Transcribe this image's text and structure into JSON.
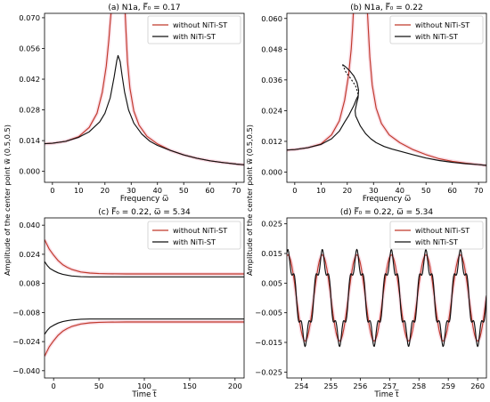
{
  "ylabel": "Amplitude of the center point w̅ (0.5,0.5)",
  "colors": {
    "without": "#c0392b",
    "with": "#111111",
    "glow": "#f6c6d6"
  },
  "chart_data": [
    {
      "type": "line",
      "title": "(a) N1a, F̅₀ = 0.17",
      "xlabel": "Frequency ω̅",
      "xlim": [
        -3,
        73
      ],
      "ylim": [
        -0.005,
        0.072
      ],
      "xticks": [
        0,
        10,
        20,
        30,
        40,
        50,
        60,
        70
      ],
      "yticks": [
        0.0,
        0.014,
        0.028,
        0.042,
        0.056,
        0.07
      ],
      "yticklabels": [
        "0.000",
        "0.014",
        "0.028",
        "0.042",
        "0.056",
        "0.070"
      ],
      "grid": false,
      "legend_position": "top-right",
      "series": [
        {
          "name": "without NiTi-ST",
          "kind": "without",
          "x": [
            -3,
            0,
            5,
            10,
            14,
            17,
            19,
            20.5,
            21.5,
            22,
            22.3
          ],
          "y": [
            0.0126,
            0.0128,
            0.0137,
            0.0158,
            0.02,
            0.0265,
            0.036,
            0.048,
            0.06,
            0.068,
            0.072
          ]
        },
        {
          "name": "without NiTi-ST",
          "kind": "without",
          "x": [
            27.7,
            28,
            28.6,
            29.5,
            31,
            33,
            36,
            40,
            45,
            50,
            55,
            60,
            65,
            70,
            73
          ],
          "y": [
            0.072,
            0.064,
            0.05,
            0.038,
            0.0275,
            0.021,
            0.016,
            0.0125,
            0.0095,
            0.0075,
            0.006,
            0.0048,
            0.004,
            0.0033,
            0.003
          ]
        },
        {
          "name": "with NiTi-ST",
          "kind": "with",
          "x": [
            -3,
            0,
            5,
            10,
            14,
            18,
            20,
            22,
            23.5,
            24.5,
            25,
            25.8,
            26.5,
            27.5,
            29,
            31,
            34,
            37,
            40,
            45,
            50,
            55,
            60,
            65,
            70,
            73
          ],
          "y": [
            0.0126,
            0.0128,
            0.0137,
            0.0155,
            0.018,
            0.0225,
            0.0265,
            0.0335,
            0.043,
            0.0505,
            0.0528,
            0.05,
            0.044,
            0.036,
            0.028,
            0.022,
            0.017,
            0.0138,
            0.0118,
            0.0095,
            0.0075,
            0.006,
            0.0048,
            0.004,
            0.0033,
            0.003
          ]
        }
      ]
    },
    {
      "type": "line",
      "title": "(b) N1a, F̅₀ = 0.22",
      "xlabel": "Frequency ω̅",
      "xlim": [
        -3,
        73
      ],
      "ylim": [
        -0.004,
        0.062
      ],
      "xticks": [
        0,
        10,
        20,
        30,
        40,
        50,
        60,
        70
      ],
      "yticks": [
        0.0,
        0.012,
        0.024,
        0.036,
        0.048,
        0.06
      ],
      "yticklabels": [
        "0.000",
        "0.012",
        "0.024",
        "0.036",
        "0.048",
        "0.060"
      ],
      "grid": false,
      "legend_position": "top-right",
      "series": [
        {
          "name": "without NiTi-ST",
          "kind": "without",
          "x": [
            -3,
            0,
            5,
            10,
            14,
            17,
            19,
            20.5,
            21.5,
            22,
            22.3
          ],
          "y": [
            0.0086,
            0.0088,
            0.0095,
            0.011,
            0.0145,
            0.02,
            0.028,
            0.038,
            0.048,
            0.056,
            0.062
          ]
        },
        {
          "name": "without NiTi-ST",
          "kind": "without",
          "x": [
            27.7,
            28,
            28.6,
            29.5,
            31,
            33,
            36,
            40,
            45,
            50,
            55,
            60,
            65,
            70,
            73
          ],
          "y": [
            0.062,
            0.056,
            0.045,
            0.034,
            0.025,
            0.019,
            0.0145,
            0.0115,
            0.0088,
            0.0068,
            0.0052,
            0.0042,
            0.0035,
            0.0029,
            0.0026
          ]
        },
        {
          "name": "with NiTi-ST",
          "kind": "with",
          "x": [
            -3,
            0,
            5,
            10,
            14,
            17,
            19,
            20.5,
            21.5,
            22.5,
            23.5,
            24.2
          ],
          "y": [
            0.0086,
            0.0088,
            0.0095,
            0.0108,
            0.013,
            0.016,
            0.0195,
            0.022,
            0.024,
            0.026,
            0.0285,
            0.03
          ]
        },
        {
          "name": "with NiTi-ST",
          "kind": "with",
          "x": [
            18.2,
            19.5,
            21,
            22.5,
            23.7,
            24.3,
            24.1,
            23.5,
            23,
            23.2,
            25,
            27,
            29,
            31,
            34,
            37,
            40,
            45,
            50,
            55,
            60,
            65,
            70,
            73
          ],
          "y": [
            0.042,
            0.041,
            0.0395,
            0.0375,
            0.035,
            0.032,
            0.029,
            0.0265,
            0.024,
            0.022,
            0.018,
            0.015,
            0.013,
            0.0115,
            0.01,
            0.009,
            0.0082,
            0.0068,
            0.0055,
            0.0045,
            0.0038,
            0.0033,
            0.0029,
            0.0026
          ]
        },
        {
          "name": "with NiTi-ST",
          "kind": "with",
          "dashed": true,
          "x": [
            18.2,
            19.5,
            21,
            22.3,
            23.2,
            23.7,
            24.1,
            24.2
          ],
          "y": [
            0.042,
            0.039,
            0.037,
            0.035,
            0.0335,
            0.032,
            0.0305,
            0.03
          ]
        }
      ]
    },
    {
      "type": "line",
      "title": "(c) F̅₀ = 0.22, ω̅ = 5.34",
      "xlabel": "Time t̅",
      "xlim": [
        -10,
        210
      ],
      "ylim": [
        -0.044,
        0.044
      ],
      "xticks": [
        0,
        50,
        100,
        150,
        200
      ],
      "yticks": [
        -0.04,
        -0.024,
        -0.008,
        0.008,
        0.024,
        0.04
      ],
      "yticklabels": [
        "−0.040",
        "−0.024",
        "−0.008",
        "0.008",
        "0.024",
        "0.040"
      ],
      "grid": false,
      "legend_position": "top-right",
      "series": [
        {
          "name": "without NiTi-ST",
          "kind": "without",
          "x": [
            -10,
            -5,
            0,
            5,
            10,
            15,
            20,
            30,
            40,
            50,
            60,
            80,
            100,
            150,
            210
          ],
          "y": [
            0.032,
            0.027,
            0.0235,
            0.0205,
            0.0183,
            0.0168,
            0.0157,
            0.0143,
            0.0137,
            0.0134,
            0.0133,
            0.0132,
            0.0132,
            0.0132,
            0.0132
          ]
        },
        {
          "name": "without NiTi-ST",
          "kind": "without",
          "x": [
            -10,
            -5,
            0,
            5,
            10,
            15,
            20,
            30,
            40,
            50,
            60,
            80,
            100,
            150,
            210
          ],
          "y": [
            -0.032,
            -0.027,
            -0.0235,
            -0.0205,
            -0.0183,
            -0.0168,
            -0.0157,
            -0.0143,
            -0.0137,
            -0.0134,
            -0.0133,
            -0.0132,
            -0.0132,
            -0.0132,
            -0.0132
          ]
        },
        {
          "name": "with NiTi-ST",
          "kind": "with",
          "x": [
            -10,
            -7,
            -4,
            0,
            5,
            10,
            15,
            20,
            30,
            40,
            50,
            70,
            100,
            150,
            210
          ],
          "y": [
            0.02,
            0.0178,
            0.0162,
            0.015,
            0.0138,
            0.013,
            0.0125,
            0.0121,
            0.0117,
            0.0116,
            0.0116,
            0.0116,
            0.0116,
            0.0116,
            0.0116
          ]
        },
        {
          "name": "with NiTi-ST",
          "kind": "with",
          "x": [
            -10,
            -7,
            -4,
            0,
            5,
            10,
            15,
            20,
            30,
            40,
            50,
            70,
            100,
            150,
            210
          ],
          "y": [
            -0.02,
            -0.0178,
            -0.0162,
            -0.015,
            -0.0138,
            -0.013,
            -0.0125,
            -0.0121,
            -0.0117,
            -0.0116,
            -0.0116,
            -0.0116,
            -0.0116,
            -0.0116,
            -0.0116
          ]
        }
      ]
    },
    {
      "type": "line",
      "title": "(d) F̅₀ = 0.22, ω̅ = 5.34",
      "xlabel": "Time t̅",
      "xlim": [
        253.5,
        260.3
      ],
      "ylim": [
        -0.027,
        0.027
      ],
      "xticks": [
        254,
        255,
        256,
        257,
        258,
        259,
        260
      ],
      "yticks": [
        -0.025,
        -0.015,
        -0.005,
        0.005,
        0.015,
        0.025
      ],
      "yticklabels": [
        "−0.025",
        "−0.015",
        "−0.005",
        "0.005",
        "0.015",
        "0.025"
      ],
      "grid": false,
      "legend_position": "top-right",
      "series": [
        {
          "name": "without NiTi-ST",
          "kind": "without",
          "periodic": true,
          "t0": 254.12,
          "period": 1.176,
          "amp1": 0.0145,
          "amp3": 0.0,
          "amp5": 0.0,
          "sample_step": 0.02
        },
        {
          "name": "with NiTi-ST",
          "kind": "with",
          "periodic": true,
          "t0": 254.12,
          "period": 1.176,
          "amp1": 0.0136,
          "amp3": 0.0,
          "amp5": 0.0028,
          "sample_step": 0.02
        }
      ]
    }
  ]
}
